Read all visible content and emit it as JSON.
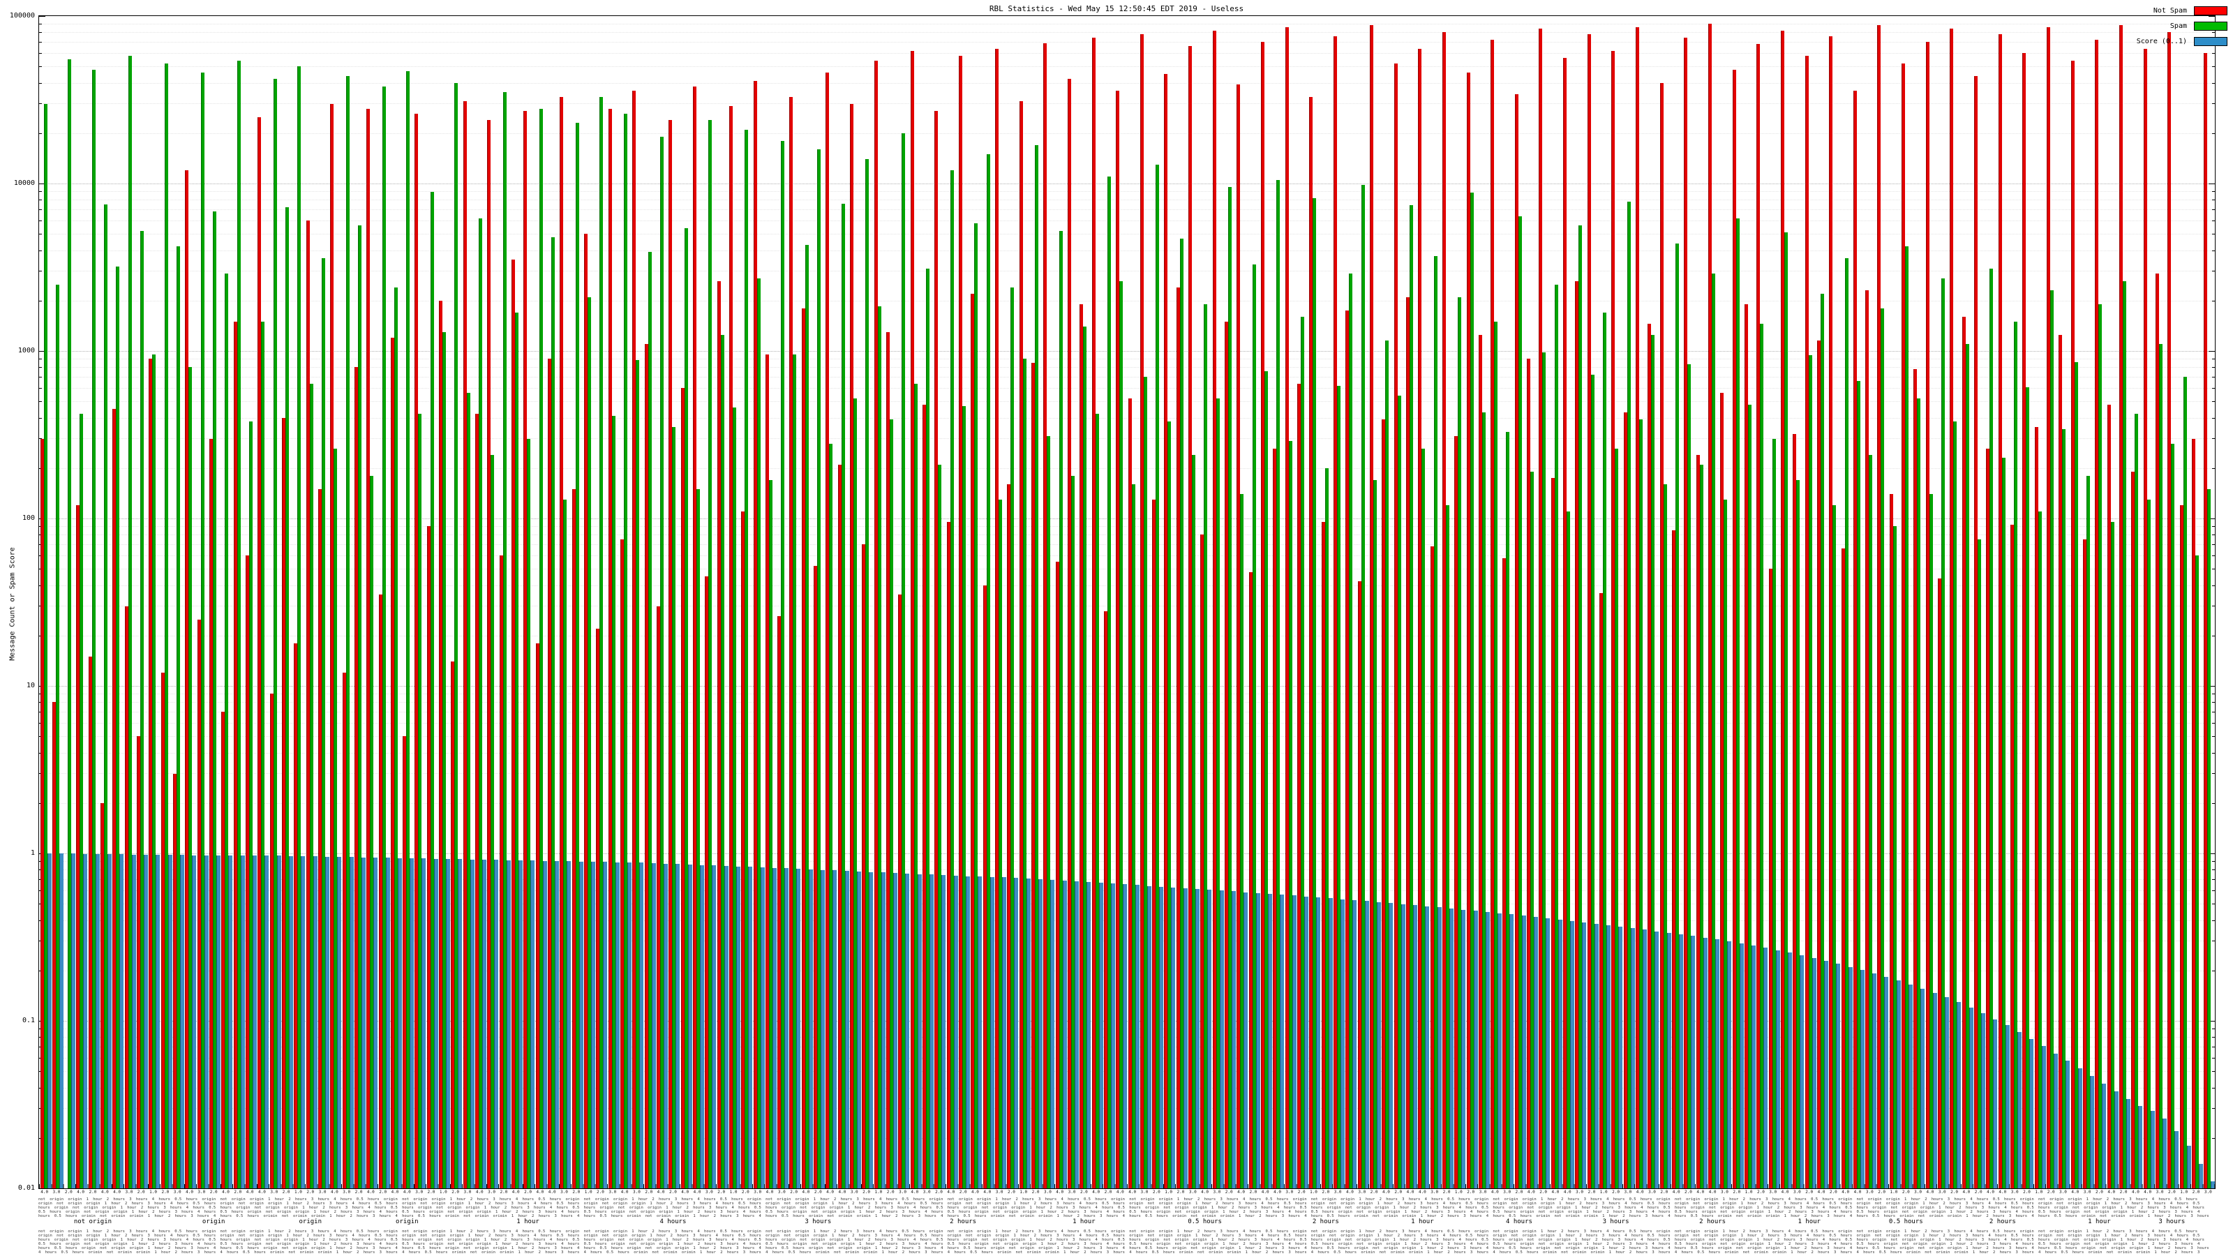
{
  "chart_data": {
    "type": "bar",
    "title": "RBL Statistics - Wed May 15 12:50:45 EDT 2019 - Useless",
    "ylabel": "Message Count or Spam Score",
    "xlabel": "",
    "yscale": "log",
    "ylim": [
      0.01,
      100000
    ],
    "yticks": [
      "100000",
      "10000",
      "1000",
      "100",
      "10",
      "1",
      "0.1",
      "0.01"
    ],
    "grid": true,
    "legend_position": "top-right",
    "legend": [
      {
        "label": "Not Spam",
        "color": "#ff0000"
      },
      {
        "label": "Spam",
        "color": "#00bb00"
      },
      {
        "label": "Score (0..1)",
        "color": "#2e8ec9"
      }
    ],
    "series": [
      {
        "name": "Not Spam",
        "color": "#e30000",
        "values": [
          300,
          8,
          0,
          120,
          15,
          2,
          450,
          30,
          5,
          900,
          12,
          3,
          12000,
          25,
          300,
          7,
          1500,
          60,
          25000,
          9,
          400,
          18,
          6000,
          150,
          30000,
          12,
          800,
          28000,
          35,
          1200,
          5,
          26000,
          90,
          2000,
          14,
          31000,
          420,
          24000,
          60,
          3500,
          27000,
          18,
          900,
          33000,
          150,
          5000,
          22,
          28000,
          75,
          36000,
          1100,
          30,
          24000,
          600,
          38000,
          45,
          2600,
          29000,
          110,
          41000,
          950,
          26,
          33000,
          1800,
          52,
          46000,
          210,
          30000,
          70,
          54000,
          1300,
          35,
          62000,
          480,
          27000,
          95,
          58000,
          2200,
          40,
          64000,
          160,
          31000,
          850,
          69000,
          55,
          42000,
          1900,
          74000,
          28,
          36000,
          520,
          78000,
          130,
          45000,
          2400,
          66000,
          80,
          82000,
          1500,
          39000,
          48,
          70000,
          260,
          86000,
          640,
          33000,
          95,
          76000,
          1750,
          42,
          88000,
          390,
          52000,
          2100,
          64000,
          68,
          80000,
          310,
          46000,
          1250,
          72000,
          58,
          34000,
          900,
          84000,
          175,
          56000,
          2600,
          78000,
          36,
          62000,
          430,
          86000,
          1450,
          40000,
          85,
          74000,
          240,
          90000,
          560,
          48000,
          1900,
          68000,
          50,
          82000,
          320,
          58000,
          1150,
          76000,
          66,
          36000,
          2300,
          88000,
          140,
          52000,
          780,
          70000,
          44,
          84000,
          1600,
          44000,
          260,
          78000,
          92,
          60000,
          350,
          86000,
          1250,
          54000,
          75,
          72000,
          480,
          88000,
          190,
          64000,
          2900,
          80000,
          120,
          300,
          60000
        ]
      },
      {
        "name": "Spam",
        "color": "#00a400",
        "values": [
          30000,
          2500,
          55000,
          420,
          48000,
          7500,
          3200,
          58000,
          5200,
          950,
          52000,
          4200,
          800,
          46000,
          6800,
          2900,
          54000,
          380,
          1500,
          42000,
          7200,
          50000,
          640,
          3600,
          260,
          44000,
          5600,
          180,
          38000,
          2400,
          47000,
          420,
          8900,
          1300,
          40000,
          560,
          6200,
          240,
          35000,
          1700,
          300,
          28000,
          4800,
          130,
          23000,
          2100,
          33000,
          410,
          26000,
          880,
          3900,
          19000,
          350,
          5400,
          150,
          24000,
          1250,
          460,
          21000,
          2700,
          170,
          18000,
          950,
          4300,
          16000,
          280,
          7600,
          520,
          14000,
          1850,
          390,
          20000,
          640,
          3100,
          210,
          12000,
          470,
          5800,
          15000,
          130,
          2400,
          900,
          17000,
          310,
          5200,
          180,
          1400,
          420,
          11000,
          2600,
          160,
          700,
          13000,
          380,
          4700,
          240,
          1900,
          520,
          9500,
          140,
          3300,
          760,
          10500,
          290,
          1600,
          8200,
          200,
          620,
          2900,
          9800,
          170,
          1150,
          540,
          7400,
          260,
          3700,
          120,
          2100,
          8800,
          430,
          1500,
          330,
          6400,
          190,
          980,
          2500,
          110,
          5600,
          720,
          1700,
          260,
          7800,
          390,
          1250,
          160,
          4400,
          830,
          210,
          2900,
          130,
          6200,
          480,
          1450,
          300,
          5100,
          170,
          940,
          2200,
          120,
          3600,
          660,
          240,
          1800,
          90,
          4200,
          520,
          140,
          2700,
          380,
          1100,
          75,
          3100,
          230,
          1500,
          610,
          110,
          2300,
          340,
          860,
          180,
          1900,
          95,
          2600,
          420,
          130,
          1100,
          280,
          700,
          60,
          150
        ]
      },
      {
        "name": "Score (0..1)",
        "color": "#3d8dc4",
        "values": [
          1.0,
          1.0,
          1.0,
          0.99,
          0.99,
          0.99,
          0.99,
          0.98,
          0.98,
          0.98,
          0.98,
          0.98,
          0.97,
          0.97,
          0.97,
          0.97,
          0.97,
          0.97,
          0.97,
          0.97,
          0.966,
          0.963,
          0.96,
          0.957,
          0.954,
          0.951,
          0.948,
          0.945,
          0.942,
          0.939,
          0.936,
          0.933,
          0.93,
          0.927,
          0.924,
          0.921,
          0.918,
          0.915,
          0.912,
          0.909,
          0.906,
          0.903,
          0.9,
          0.897,
          0.894,
          0.891,
          0.888,
          0.885,
          0.882,
          0.88,
          0.874,
          0.869,
          0.863,
          0.858,
          0.852,
          0.847,
          0.841,
          0.836,
          0.83,
          0.825,
          0.819,
          0.814,
          0.808,
          0.803,
          0.797,
          0.792,
          0.786,
          0.781,
          0.775,
          0.77,
          0.764,
          0.759,
          0.753,
          0.748,
          0.742,
          0.737,
          0.731,
          0.726,
          0.723,
          0.72,
          0.713,
          0.707,
          0.7,
          0.693,
          0.687,
          0.68,
          0.673,
          0.667,
          0.66,
          0.653,
          0.647,
          0.64,
          0.633,
          0.627,
          0.62,
          0.613,
          0.607,
          0.6,
          0.593,
          0.587,
          0.58,
          0.573,
          0.567,
          0.56,
          0.553,
          0.547,
          0.54,
          0.533,
          0.527,
          0.52,
          0.513,
          0.505,
          0.498,
          0.49,
          0.483,
          0.476,
          0.468,
          0.461,
          0.454,
          0.446,
          0.439,
          0.432,
          0.424,
          0.417,
          0.41,
          0.402,
          0.395,
          0.387,
          0.38,
          0.373,
          0.365,
          0.358,
          0.351,
          0.343,
          0.336,
          0.329,
          0.321,
          0.314,
          0.307,
          0.3,
          0.291,
          0.282,
          0.273,
          0.264,
          0.255,
          0.246,
          0.237,
          0.228,
          0.219,
          0.21,
          0.201,
          0.192,
          0.183,
          0.174,
          0.165,
          0.156,
          0.147,
          0.138,
          0.129,
          0.12,
          0.111,
          0.102,
          0.094,
          0.086,
          0.078,
          0.071,
          0.064,
          0.058,
          0.052,
          0.047,
          0.042,
          0.038,
          0.034,
          0.031,
          0.029,
          0.026,
          0.022,
          0.018,
          0.014,
          0.011
        ]
      }
    ],
    "x_axis": {
      "score_label_cycle": [
        "4.0",
        "3.0",
        "2.0",
        "4.0",
        "2.0",
        "4.0",
        "4.0",
        "3.0",
        "2.0",
        "1.0",
        "2.0",
        "3.0"
      ],
      "dense_text": "not origin origin 1 hour 2 hours 3 hours 4 hours 0.5 hours origin",
      "group_labels": [
        {
          "text": "not origin",
          "index": 4
        },
        {
          "text": "origin",
          "index": 14
        },
        {
          "text": "origin",
          "index": 22
        },
        {
          "text": "origin",
          "index": 30
        },
        {
          "text": "1 hour",
          "index": 40
        },
        {
          "text": "4 hours",
          "index": 52
        },
        {
          "text": "3 hours",
          "index": 64
        },
        {
          "text": "2 hours",
          "index": 76
        },
        {
          "text": "1 hour",
          "index": 86
        },
        {
          "text": "0.5 hours",
          "index": 96
        },
        {
          "text": "2 hours",
          "index": 106
        },
        {
          "text": "1 hour",
          "index": 114
        },
        {
          "text": "4 hours",
          "index": 122
        },
        {
          "text": "3 hours",
          "index": 130
        },
        {
          "text": "2 hours",
          "index": 138
        },
        {
          "text": "1 hour",
          "index": 146
        },
        {
          "text": "0.5 hours",
          "index": 154
        },
        {
          "text": "2 hours",
          "index": 162
        },
        {
          "text": "1 hour",
          "index": 170
        },
        {
          "text": "3 hours",
          "index": 176
        }
      ]
    }
  }
}
